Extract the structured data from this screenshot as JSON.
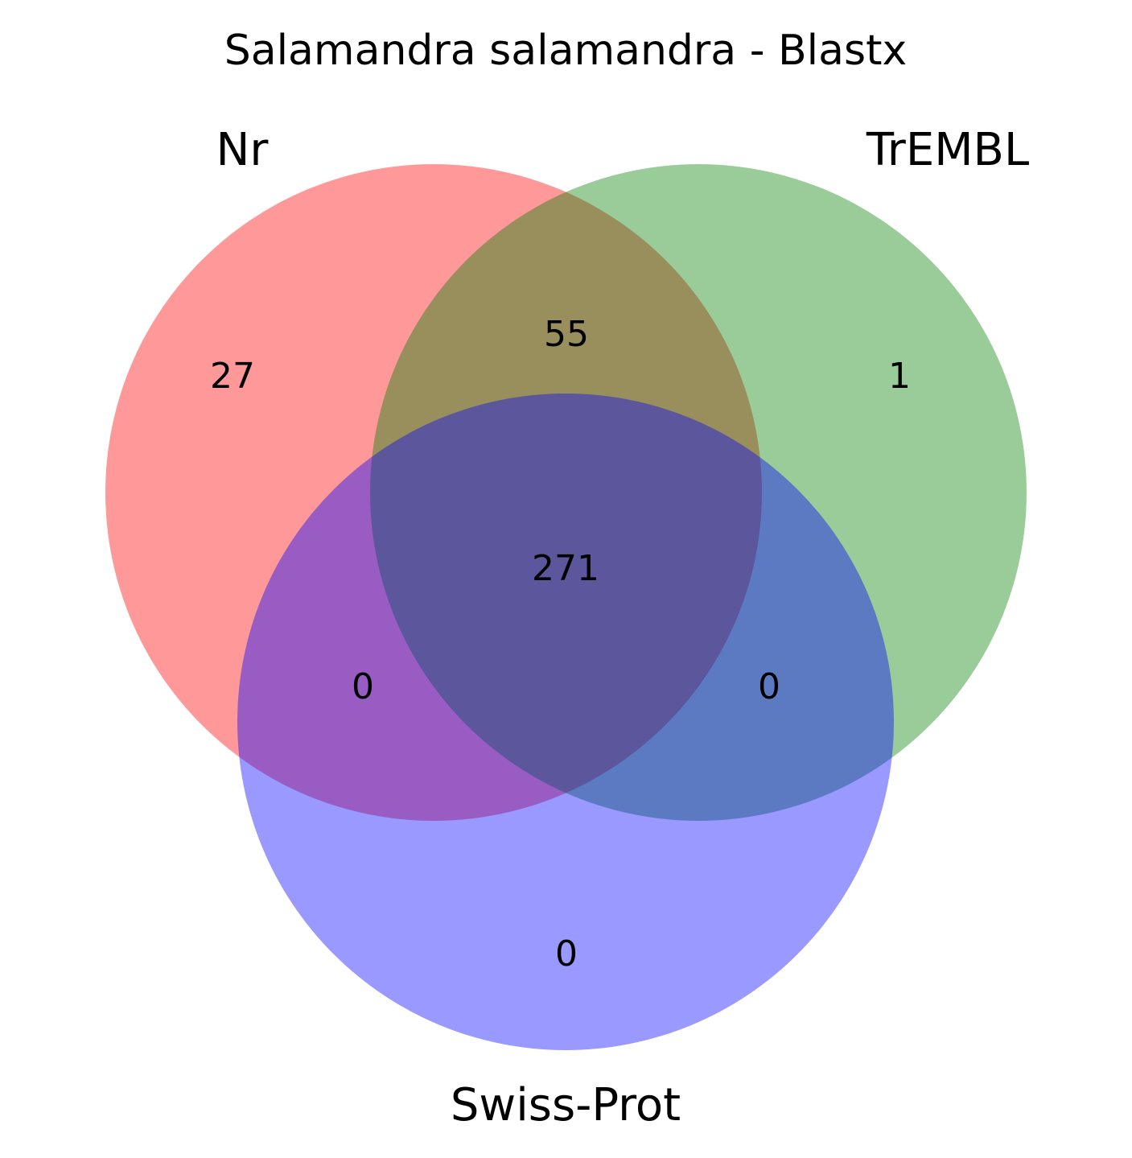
{
  "title": "Salamandra salamandra - Blastx",
  "sets": [
    {
      "name": "Nr",
      "color": "#ff0000"
    },
    {
      "name": "TrEMBL",
      "color": "#008000"
    },
    {
      "name": "Swiss-Prot",
      "color": "#0000ff"
    }
  ],
  "regions": {
    "nr_only": "27",
    "trembl_only": "1",
    "swissprot_only": "0",
    "nr_trembl": "55",
    "nr_swissprot": "0",
    "trembl_swissprot": "0",
    "all_three": "271"
  }
}
